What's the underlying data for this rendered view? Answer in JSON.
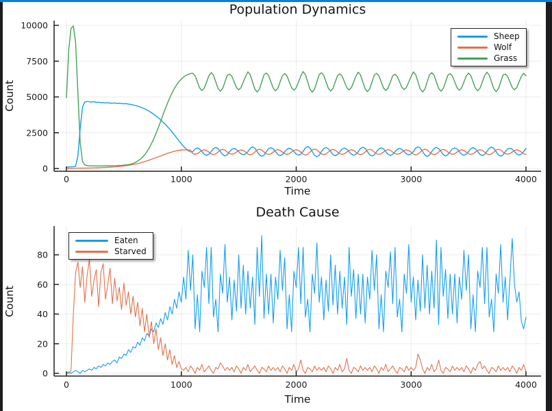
{
  "frame": {
    "accent_color": "#0c7fd6",
    "bar_color": "#1d1d1f",
    "background": "#ffffff"
  },
  "chart_data": [
    {
      "type": "line",
      "title": "Population Dynamics",
      "xlabel": "Time",
      "ylabel": "Count",
      "xlim": [
        0,
        4000
      ],
      "ylim": [
        0,
        10000
      ],
      "xticks": [
        0,
        1000,
        2000,
        3000,
        4000
      ],
      "yticks": [
        0,
        2500,
        5000,
        7500,
        10000
      ],
      "grid": true,
      "legend_position": "top-right",
      "series": [
        {
          "name": "Sheep",
          "color": "#129df2",
          "t0": 0,
          "dt": 20,
          "values": [
            100,
            110,
            115,
            125,
            160,
            900,
            2800,
            4300,
            4650,
            4680,
            4660,
            4640,
            4660,
            4620,
            4630,
            4600,
            4610,
            4580,
            4600,
            4570,
            4560,
            4580,
            4550,
            4560,
            4540,
            4520,
            4530,
            4500,
            4480,
            4440,
            4400,
            4350,
            4300,
            4240,
            4170,
            4090,
            4000,
            3900,
            3790,
            3670,
            3540,
            3400,
            3250,
            3090,
            2920,
            2740,
            2550,
            2350,
            2140,
            1930,
            1730,
            1540,
            1380,
            1250,
            1160,
            1180,
            1370,
            1440,
            1360,
            1180,
            990,
            920,
            1000,
            1190,
            1390,
            1480,
            1390,
            1180,
            970,
            880,
            960,
            1180,
            1340,
            1400,
            1330,
            1170,
            1020,
            960,
            1030,
            1180,
            1410,
            1510,
            1420,
            1190,
            950,
            850,
            940,
            1180,
            1380,
            1460,
            1380,
            1180,
            980,
            900,
            980,
            1170,
            1350,
            1420,
            1350,
            1180,
            1010,
            940,
            1010,
            1180,
            1440,
            1540,
            1430,
            1180,
            920,
            820,
            930,
            1190,
            1390,
            1470,
            1380,
            1180,
            970,
            890,
            980,
            1180,
            1360,
            1430,
            1360,
            1170,
            1000,
            930,
            1000,
            1180,
            1400,
            1490,
            1400,
            1180,
            960,
            870,
            960,
            1180,
            1370,
            1450,
            1370,
            1180,
            990,
            910,
            990,
            1170,
            1340,
            1410,
            1340,
            1180,
            1020,
            950,
            1020,
            1180,
            1420,
            1520,
            1420,
            1190,
            940,
            840,
            940,
            1180,
            1390,
            1480,
            1390,
            1180,
            970,
            880,
            970,
            1180,
            1370,
            1440,
            1370,
            1170,
            990,
            920,
            1000,
            1180,
            1380,
            1460,
            1380,
            1180,
            980,
            900,
            980,
            1190,
            1410,
            1500,
            1410,
            1180,
            950,
            860,
            950,
            1180,
            1350,
            1420,
            1350,
            1180,
            1010,
            940,
            1010,
            1180,
            1390
          ]
        },
        {
          "name": "Wolf",
          "color": "#e3704a",
          "t0": 0,
          "dt": 20,
          "values": [
            10,
            12,
            15,
            15,
            18,
            20,
            22,
            25,
            28,
            30,
            34,
            38,
            42,
            48,
            55,
            60,
            68,
            75,
            85,
            95,
            105,
            115,
            130,
            145,
            160,
            180,
            200,
            225,
            250,
            280,
            310,
            345,
            385,
            430,
            480,
            530,
            585,
            640,
            700,
            760,
            820,
            880,
            940,
            1000,
            1060,
            1110,
            1160,
            1200,
            1240,
            1270,
            1290,
            1300,
            1300,
            1290,
            1280,
            1040,
            990,
            1040,
            1150,
            1260,
            1310,
            1260,
            1150,
            1020,
            970,
            1020,
            1150,
            1280,
            1330,
            1280,
            1150,
            1040,
            1000,
            1040,
            1150,
            1260,
            1300,
            1260,
            1150,
            1010,
            950,
            1010,
            1150,
            1290,
            1350,
            1290,
            1150,
            1030,
            980,
            1030,
            1150,
            1270,
            1320,
            1270,
            1150,
            1040,
            990,
            1040,
            1150,
            1260,
            1310,
            1260,
            1150,
            1000,
            940,
            1000,
            1150,
            1300,
            1360,
            1300,
            1150,
            1020,
            970,
            1020,
            1150,
            1280,
            1330,
            1280,
            1150,
            1040,
            990,
            1040,
            1150,
            1260,
            1310,
            1260,
            1150,
            1020,
            960,
            1020,
            1150,
            1290,
            1340,
            1290,
            1150,
            1030,
            980,
            1030,
            1150,
            1270,
            1320,
            1270,
            1150,
            1040,
            1000,
            1040,
            1150,
            1260,
            1300,
            1260,
            1150,
            1010,
            950,
            1010,
            1150,
            1290,
            1350,
            1290,
            1150,
            1020,
            970,
            1020,
            1150,
            1280,
            1330,
            1280,
            1150,
            1040,
            990,
            1040,
            1150,
            1260,
            1310,
            1260,
            1150,
            1030,
            980,
            1030,
            1150,
            1270,
            1320,
            1270,
            1150,
            1020,
            960,
            1020,
            1150,
            1290,
            1340,
            1290,
            1150,
            1040,
            1000,
            1040,
            1150,
            1260,
            1300,
            1260,
            1150,
            1030,
            980
          ]
        },
        {
          "name": "Grass",
          "color": "#42a355",
          "t0": 0,
          "dt": 20,
          "values": [
            4950,
            8300,
            9800,
            9950,
            8800,
            5200,
            1800,
            500,
            250,
            200,
            190,
            185,
            180,
            180,
            175,
            180,
            185,
            180,
            190,
            185,
            190,
            195,
            200,
            210,
            220,
            235,
            255,
            275,
            300,
            360,
            430,
            520,
            630,
            770,
            950,
            1170,
            1430,
            1730,
            2070,
            2450,
            2860,
            3290,
            3730,
            4160,
            4570,
            4950,
            5290,
            5590,
            5850,
            6070,
            6250,
            6390,
            6500,
            6580,
            6630,
            6650,
            6480,
            6050,
            5620,
            5450,
            5620,
            6050,
            6480,
            6700,
            6510,
            6050,
            5590,
            5400,
            5590,
            6050,
            6510,
            6600,
            6440,
            6050,
            5660,
            5500,
            5660,
            6050,
            6440,
            6750,
            6550,
            6050,
            5550,
            5350,
            5550,
            6050,
            6550,
            6670,
            6490,
            6050,
            5610,
            5430,
            5610,
            6050,
            6490,
            6630,
            6460,
            6050,
            5640,
            5470,
            5640,
            6050,
            6460,
            6770,
            6560,
            6050,
            5540,
            5330,
            5540,
            6050,
            6560,
            6690,
            6500,
            6050,
            5600,
            5410,
            5600,
            6050,
            6500,
            6610,
            6450,
            6050,
            5650,
            5490,
            5650,
            6050,
            6450,
            6730,
            6530,
            6050,
            5570,
            5370,
            5570,
            6050,
            6530,
            6650,
            6480,
            6050,
            5620,
            5450,
            5620,
            6050,
            6480,
            6590,
            6430,
            6050,
            5670,
            5510,
            5670,
            6050,
            6430,
            6750,
            6550,
            6050,
            5550,
            5350,
            5550,
            6050,
            6550,
            6700,
            6510,
            6050,
            5590,
            5400,
            5590,
            6050,
            6510,
            6630,
            6460,
            6050,
            5640,
            5470,
            5640,
            6050,
            6460,
            6670,
            6490,
            6050,
            5610,
            5430,
            5610,
            6050,
            6490,
            6730,
            6530,
            6050,
            5570,
            5370,
            5570,
            6050,
            6530,
            6600,
            6440,
            6050,
            5660,
            5500,
            5660,
            6050,
            6440,
            6650,
            6480
          ]
        }
      ]
    },
    {
      "type": "line",
      "title": "Death Cause",
      "xlabel": "Time",
      "ylabel": "Count",
      "xlim": [
        0,
        4000
      ],
      "ylim": [
        0,
        95
      ],
      "xticks": [
        0,
        1000,
        2000,
        3000,
        4000
      ],
      "yticks": [
        0,
        20,
        40,
        60,
        80
      ],
      "grid": true,
      "legend_position": "top-left",
      "series": [
        {
          "name": "Eaten",
          "color": "#129df2",
          "t0": 0,
          "dt": 20,
          "values": [
            0,
            1,
            0,
            1,
            2,
            1,
            0,
            2,
            1,
            2,
            3,
            2,
            4,
            3,
            5,
            4,
            6,
            5,
            7,
            6,
            8,
            9,
            7,
            11,
            10,
            13,
            12,
            16,
            14,
            18,
            17,
            21,
            19,
            24,
            22,
            27,
            25,
            30,
            28,
            34,
            31,
            37,
            33,
            41,
            36,
            45,
            40,
            50,
            44,
            55,
            48,
            65,
            50,
            83,
            56,
            80,
            30,
            53,
            28,
            69,
            58,
            85,
            47,
            85,
            38,
            50,
            28,
            67,
            54,
            87,
            48,
            65,
            36,
            63,
            42,
            80,
            44,
            73,
            40,
            69,
            44,
            65,
            33,
            85,
            52,
            93,
            37,
            67,
            40,
            67,
            34,
            65,
            50,
            83,
            56,
            78,
            30,
            53,
            28,
            69,
            58,
            85,
            47,
            85,
            38,
            50,
            28,
            67,
            54,
            88,
            48,
            65,
            36,
            63,
            42,
            80,
            46,
            73,
            40,
            69,
            44,
            65,
            33,
            85,
            52,
            70,
            37,
            67,
            40,
            67,
            34,
            65,
            50,
            83,
            56,
            80,
            30,
            53,
            28,
            69,
            58,
            82,
            47,
            85,
            38,
            50,
            28,
            67,
            54,
            87,
            48,
            65,
            36,
            63,
            42,
            80,
            44,
            73,
            40,
            69,
            44,
            90,
            33,
            85,
            52,
            70,
            37,
            67,
            40,
            67,
            34,
            65,
            50,
            83,
            56,
            80,
            30,
            53,
            28,
            69,
            58,
            85,
            47,
            85,
            38,
            50,
            28,
            67,
            54,
            87,
            48,
            65,
            36,
            63,
            91,
            60,
            48,
            55,
            35,
            30,
            38
          ]
        },
        {
          "name": "Starved",
          "color": "#e3704a",
          "t0": 0,
          "dt": 20,
          "values": [
            0,
            0,
            2,
            40,
            68,
            75,
            58,
            72,
            48,
            66,
            77,
            52,
            63,
            70,
            45,
            68,
            74,
            50,
            60,
            71,
            47,
            64,
            49,
            58,
            43,
            61,
            46,
            55,
            40,
            52,
            38,
            48,
            32,
            44,
            28,
            40,
            24,
            35,
            20,
            30,
            16,
            24,
            12,
            20,
            9,
            16,
            6,
            12,
            4,
            8,
            3,
            2,
            4,
            1,
            5,
            3,
            0,
            4,
            2,
            6,
            1,
            3,
            5,
            2,
            0,
            4,
            3,
            7,
            5,
            2,
            4,
            2,
            4,
            1,
            5,
            3,
            0,
            4,
            2,
            6,
            1,
            3,
            5,
            2,
            0,
            4,
            3,
            1,
            5,
            2,
            4,
            2,
            4,
            1,
            5,
            3,
            0,
            4,
            2,
            6,
            1,
            3,
            9,
            2,
            0,
            4,
            3,
            1,
            5,
            2,
            4,
            2,
            4,
            1,
            5,
            3,
            0,
            4,
            2,
            6,
            1,
            3,
            10,
            2,
            0,
            4,
            3,
            1,
            5,
            2,
            4,
            2,
            4,
            1,
            5,
            3,
            0,
            4,
            2,
            6,
            1,
            3,
            5,
            2,
            0,
            4,
            3,
            1,
            5,
            2,
            4,
            2,
            4,
            13,
            9,
            3,
            0,
            4,
            2,
            6,
            1,
            3,
            9,
            2,
            0,
            4,
            3,
            1,
            5,
            2,
            4,
            2,
            4,
            1,
            5,
            3,
            0,
            4,
            2,
            6,
            8,
            3,
            5,
            2,
            0,
            4,
            3,
            1,
            5,
            2,
            4,
            2,
            4,
            1,
            5,
            3,
            0,
            4,
            2,
            6,
            1
          ]
        }
      ]
    }
  ]
}
